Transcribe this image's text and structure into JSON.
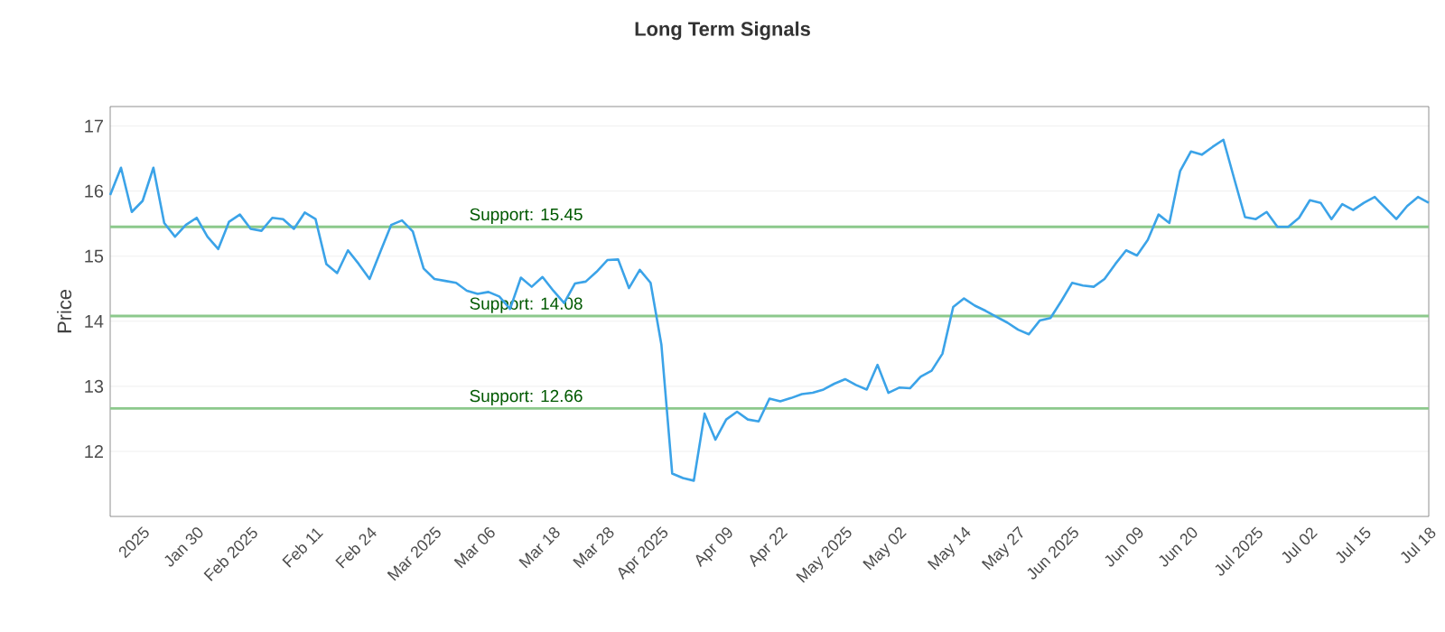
{
  "chart_data": {
    "type": "line",
    "title": "Long Term Signals",
    "ylabel": "Price",
    "categories": [
      null,
      null,
      null,
      "2025",
      null,
      null,
      null,
      null,
      "Jan 30",
      null,
      null,
      null,
      null,
      "Feb 2025",
      null,
      null,
      null,
      null,
      null,
      "Feb 11",
      null,
      null,
      null,
      null,
      "Feb 24",
      null,
      null,
      null,
      null,
      null,
      "Mar 2025",
      null,
      null,
      null,
      null,
      "Mar 06",
      null,
      null,
      null,
      null,
      null,
      "Mar 18",
      null,
      null,
      null,
      null,
      "Mar 28",
      null,
      null,
      null,
      null,
      "Apr 2025",
      null,
      null,
      null,
      null,
      null,
      "Apr 09",
      null,
      null,
      null,
      null,
      "Apr 22",
      null,
      null,
      null,
      null,
      null,
      "May 2025",
      null,
      null,
      null,
      null,
      "May 02",
      null,
      null,
      null,
      null,
      null,
      "May 14",
      null,
      null,
      null,
      null,
      "May 27",
      null,
      null,
      null,
      null,
      "Jun 2025",
      null,
      null,
      null,
      null,
      null,
      "Jun 09",
      null,
      null,
      null,
      null,
      "Jun 20",
      null,
      null,
      null,
      null,
      null,
      "Jul 2025",
      null,
      null,
      null,
      null,
      "Jul 02",
      null,
      null,
      null,
      null,
      "Jul 15",
      null,
      null,
      null,
      null,
      null,
      "Jul 18"
    ],
    "series": [
      {
        "color": "#3ba3e8",
        "values": [
          15.94,
          16.36,
          15.68,
          15.85,
          16.36,
          15.51,
          15.3,
          15.48,
          15.59,
          15.3,
          15.11,
          15.53,
          15.64,
          15.42,
          15.39,
          15.59,
          15.57,
          15.42,
          15.67,
          15.57,
          14.88,
          14.74,
          15.09,
          14.88,
          14.65,
          15.07,
          15.48,
          15.55,
          15.38,
          14.81,
          14.65,
          14.62,
          14.59,
          14.47,
          14.42,
          14.45,
          14.38,
          14.19,
          14.67,
          14.53,
          14.68,
          14.47,
          14.28,
          14.58,
          14.61,
          14.76,
          14.94,
          14.95,
          14.51,
          14.79,
          14.59,
          13.64,
          11.66,
          11.59,
          11.55,
          12.58,
          12.18,
          12.49,
          12.61,
          12.49,
          12.46,
          12.81,
          12.77,
          12.82,
          12.88,
          12.9,
          12.95,
          13.04,
          13.11,
          13.02,
          12.95,
          13.33,
          12.9,
          12.98,
          12.97,
          13.15,
          13.24,
          13.5,
          14.22,
          14.35,
          14.24,
          14.16,
          14.07,
          13.98,
          13.87,
          13.8,
          14.01,
          14.05,
          14.31,
          14.59,
          14.55,
          14.53,
          14.65,
          14.88,
          15.09,
          15.01,
          15.25,
          15.64,
          15.51,
          16.31,
          16.61,
          16.56,
          16.68,
          16.79,
          16.19,
          15.6,
          15.57,
          15.68,
          15.45,
          15.45,
          15.59,
          15.86,
          15.82,
          15.57,
          15.8,
          15.71,
          15.82,
          15.91,
          15.74,
          15.57,
          15.77,
          15.91,
          15.82
        ]
      }
    ],
    "ylim": [
      11,
      17.3
    ],
    "yticks": [
      12,
      13,
      14,
      15,
      16,
      17
    ],
    "grid": "y",
    "marker": "none",
    "line_style": "solid",
    "ref_lines": [
      {
        "axis": "y",
        "value": 15.45,
        "label": "Support: 15.45",
        "color": "#8cc98c"
      },
      {
        "axis": "y",
        "value": 14.08,
        "label": "Support: 14.08",
        "color": "#8cc98c"
      },
      {
        "axis": "y",
        "value": 12.66,
        "label": "Support: 12.66",
        "color": "#8cc98c"
      }
    ]
  }
}
